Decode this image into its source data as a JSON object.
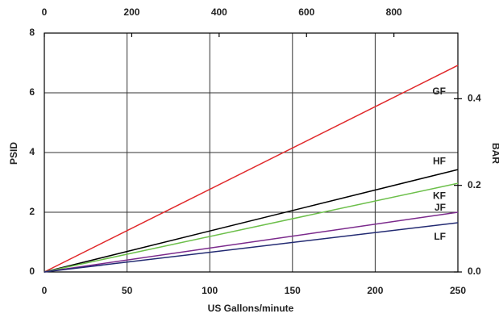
{
  "chart_data": {
    "type": "line",
    "x_label": "US Gallons/minute",
    "y_label": "PSID",
    "y2_label": "BAR",
    "x": [
      0,
      250
    ],
    "series": [
      {
        "name": "GF",
        "color": "#e0282a",
        "values": [
          0,
          6.92
        ]
      },
      {
        "name": "HF",
        "color": "#000000",
        "values": [
          0,
          3.43
        ]
      },
      {
        "name": "KF",
        "color": "#6cbf4a",
        "values": [
          0,
          2.97
        ]
      },
      {
        "name": "JF",
        "color": "#7b2a8c",
        "values": [
          0,
          2.0
        ]
      },
      {
        "name": "LF",
        "color": "#222a72",
        "values": [
          0,
          1.65
        ]
      }
    ],
    "xlim": [
      0,
      250
    ],
    "xticks": [
      0,
      50,
      100,
      150,
      200,
      250
    ],
    "x2lim": [
      0,
      946.35
    ],
    "x2ticks": [
      0,
      200,
      400,
      600,
      800
    ],
    "ylim": [
      0,
      8
    ],
    "yticks": [
      0,
      2,
      4,
      6,
      8
    ],
    "y2lim": [
      0,
      0.5516
    ],
    "y2ticks": [
      {
        "value": 0,
        "label": "0.0"
      },
      {
        "value": 0.2,
        "label": "0.2"
      },
      {
        "value": 0.4,
        "label": "0.4"
      }
    ],
    "grid": true
  }
}
